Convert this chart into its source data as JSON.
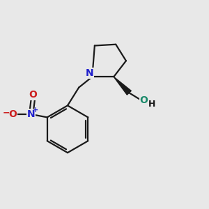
{
  "background_color": "#e8e8e8",
  "line_color": "#1a1a1a",
  "N_color": "#2020cc",
  "O_color": "#cc2020",
  "OH_O_color": "#1a8a6a",
  "bond_lw": 1.6,
  "font_size_atom": 10,
  "font_size_charge": 7,
  "figsize": [
    3.0,
    3.0
  ],
  "dpi": 100,
  "xlim": [
    0,
    10
  ],
  "ylim": [
    0,
    10
  ]
}
